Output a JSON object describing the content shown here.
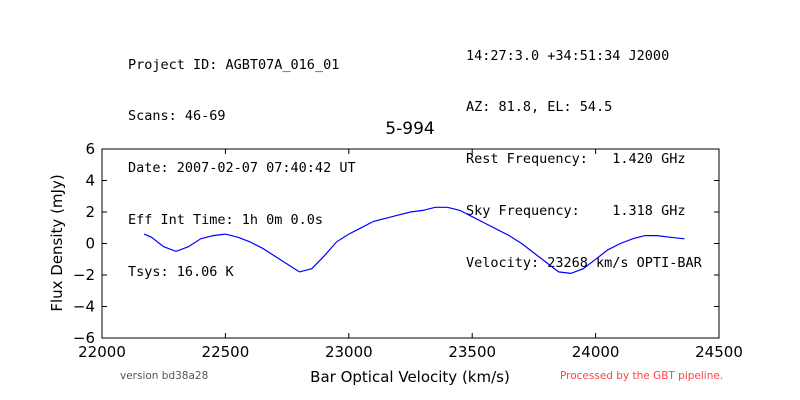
{
  "header_left": [
    "Project ID: AGBT07A_016_01",
    "Scans: 46-69",
    "Date: 2007-02-07 07:40:42 UT",
    "Eff Int Time: 1h 0m 0.0s",
    "Tsys: 16.06 K"
  ],
  "header_right": [
    "14:27:3.0 +34:51:34 J2000",
    "AZ: 81.8, EL: 54.5",
    "Rest Frequency:   1.420 GHz",
    "Sky Frequency:    1.318 GHz",
    "Velocity: 23268 km/s OPTI-BAR"
  ],
  "footer": {
    "version": "version bd38a28",
    "pipeline": "Processed by the GBT pipeline.",
    "pipeline_color": "#ff4444"
  },
  "chart_data": {
    "type": "line",
    "title": "5-994",
    "xlabel": "Bar Optical Velocity (km/s)",
    "ylabel": "Flux Density (mJy)",
    "xlim": [
      22000,
      24500
    ],
    "ylim": [
      -6,
      6
    ],
    "xticks": [
      22000,
      22500,
      23000,
      23500,
      24000,
      24500
    ],
    "yticks": [
      -6,
      -4,
      -2,
      0,
      2,
      4,
      6
    ],
    "grid": false,
    "line_color": "#0000ff",
    "series": [
      {
        "x": [
          22170,
          22200,
          22250,
          22300,
          22350,
          22400,
          22450,
          22500,
          22550,
          22600,
          22650,
          22700,
          22750,
          22800,
          22850,
          22900,
          22950,
          23000,
          23050,
          23100,
          23150,
          23200,
          23250,
          23300,
          23350,
          23400,
          23450,
          23500,
          23550,
          23600,
          23650,
          23700,
          23750,
          23800,
          23850,
          23900,
          23950,
          24000,
          24050,
          24100,
          24150,
          24200,
          24250,
          24300,
          24360
        ],
        "values": [
          0.6,
          0.4,
          -0.2,
          -0.5,
          -0.2,
          0.3,
          0.5,
          0.6,
          0.4,
          0.1,
          -0.3,
          -0.8,
          -1.3,
          -1.8,
          -1.6,
          -0.8,
          0.1,
          0.6,
          1.0,
          1.4,
          1.6,
          1.8,
          2.0,
          2.1,
          2.3,
          2.3,
          2.1,
          1.7,
          1.3,
          0.9,
          0.5,
          0.0,
          -0.6,
          -1.2,
          -1.8,
          -1.9,
          -1.6,
          -1.0,
          -0.4,
          0.0,
          0.3,
          0.5,
          0.5,
          0.4,
          0.3
        ]
      }
    ]
  }
}
